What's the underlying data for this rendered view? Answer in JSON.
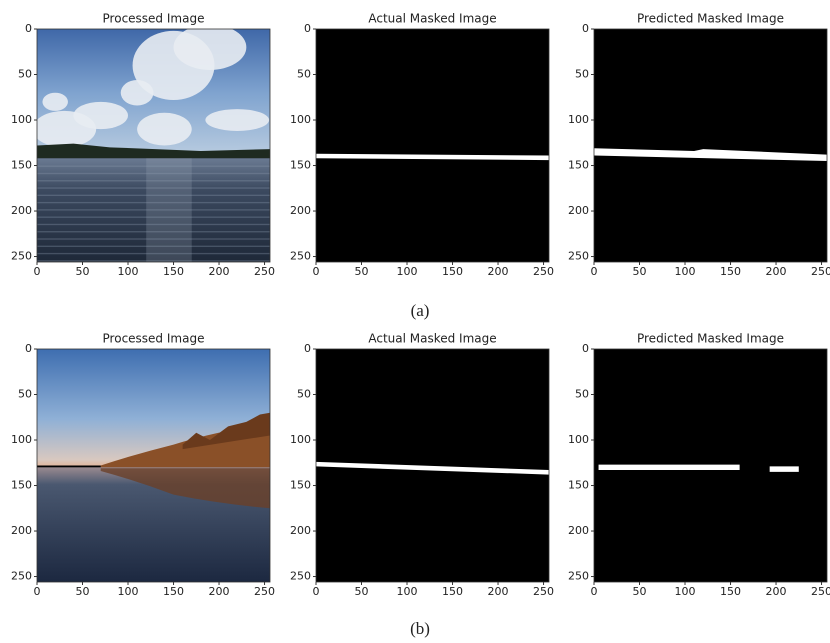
{
  "axes": {
    "xlim": [
      0,
      256
    ],
    "ylim": [
      0,
      256
    ],
    "xticks": [
      0,
      50,
      100,
      150,
      200,
      250
    ],
    "yticks": [
      0,
      50,
      100,
      150,
      200,
      250
    ]
  },
  "rows": [
    {
      "caption": "(a)",
      "panels": [
        {
          "title": "Processed Image"
        },
        {
          "title": "Actual Masked Image"
        },
        {
          "title": "Predicted Masked Image"
        }
      ]
    },
    {
      "caption": "(b)",
      "panels": [
        {
          "title": "Processed Image"
        },
        {
          "title": "Actual Masked Image"
        },
        {
          "title": "Predicted Masked Image"
        }
      ]
    }
  ]
}
